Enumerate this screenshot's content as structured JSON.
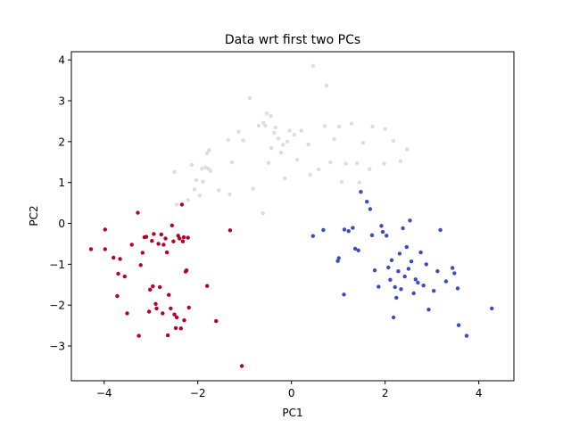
{
  "chart_data": {
    "type": "scatter",
    "title": "Data wrt first two PCs",
    "xlabel": "PC1",
    "ylabel": "PC2",
    "xlim": [
      -4.7,
      4.75
    ],
    "ylim": [
      -3.85,
      4.2
    ],
    "xticks": [
      -4,
      -2,
      0,
      2,
      4
    ],
    "yticks": [
      -3,
      -2,
      -1,
      0,
      1,
      2,
      3,
      4
    ],
    "grid": false,
    "legend": "none",
    "series": [
      {
        "color": "#b40426",
        "points": [
          [
            -4.28,
            -0.63
          ],
          [
            -3.98,
            -0.15
          ],
          [
            -3.98,
            -0.63
          ],
          [
            -3.8,
            -0.84
          ],
          [
            -3.72,
            -1.78
          ],
          [
            -3.7,
            -1.23
          ],
          [
            -3.66,
            -0.87
          ],
          [
            -3.56,
            -1.3
          ],
          [
            -3.51,
            -2.2
          ],
          [
            -3.41,
            -0.52
          ],
          [
            -3.28,
            0.26
          ],
          [
            -3.26,
            -2.75
          ],
          [
            -3.22,
            -1.02
          ],
          [
            -3.18,
            -0.72
          ],
          [
            -3.14,
            -0.34
          ],
          [
            -3.1,
            -0.33
          ],
          [
            -3.04,
            -2.16
          ],
          [
            -3.02,
            -1.62
          ],
          [
            -2.98,
            -0.43
          ],
          [
            -2.96,
            -1.54
          ],
          [
            -2.94,
            -0.26
          ],
          [
            -2.9,
            -1.97
          ],
          [
            -2.88,
            -2.08
          ],
          [
            -2.84,
            -0.5
          ],
          [
            -2.81,
            -1.56
          ],
          [
            -2.78,
            -0.27
          ],
          [
            -2.75,
            -2.2
          ],
          [
            -2.73,
            -0.52
          ],
          [
            -2.69,
            -0.37
          ],
          [
            -2.66,
            -0.71
          ],
          [
            -2.64,
            -2.74
          ],
          [
            -2.62,
            -1.75
          ],
          [
            -2.58,
            -2.08
          ],
          [
            -2.55,
            -0.05
          ],
          [
            -2.52,
            -0.44
          ],
          [
            -2.5,
            -2.23
          ],
          [
            -2.47,
            -2.56
          ],
          [
            -2.45,
            -2.3
          ],
          [
            -2.42,
            -0.3
          ],
          [
            -2.39,
            -0.37
          ],
          [
            -2.36,
            -2.57
          ],
          [
            -2.34,
            0.46
          ],
          [
            -2.32,
            -0.44
          ],
          [
            -2.3,
            -0.34
          ],
          [
            -2.29,
            -2.37
          ],
          [
            -2.26,
            -1.18
          ],
          [
            -2.24,
            -1.15
          ],
          [
            -2.21,
            -0.35
          ],
          [
            -2.19,
            -2.06
          ],
          [
            -1.8,
            -1.53
          ],
          [
            -1.61,
            -2.39
          ],
          [
            -1.31,
            -0.17
          ],
          [
            -1.06,
            -3.49
          ]
        ]
      },
      {
        "color": "#dddddd",
        "points": [
          [
            -2.45,
            0.46
          ],
          [
            -2.5,
            1.26
          ],
          [
            -2.21,
            0.57
          ],
          [
            -2.13,
            1.43
          ],
          [
            -2.07,
            0.83
          ],
          [
            -2.03,
            1.06
          ],
          [
            -1.96,
            0.68
          ],
          [
            -1.91,
            1.34
          ],
          [
            -1.89,
            1.02
          ],
          [
            -1.83,
            1.37
          ],
          [
            -1.8,
            1.72
          ],
          [
            -1.78,
            1.34
          ],
          [
            -1.76,
            1.79
          ],
          [
            -1.73,
            1.28
          ],
          [
            -1.55,
            0.81
          ],
          [
            -1.35,
            2.04
          ],
          [
            -1.32,
            0.71
          ],
          [
            -1.27,
            1.49
          ],
          [
            -1.13,
            2.24
          ],
          [
            -1.03,
            2.03
          ],
          [
            -0.89,
            3.07
          ],
          [
            -0.82,
            0.85
          ],
          [
            -0.7,
            2.39
          ],
          [
            -0.61,
            0.25
          ],
          [
            -0.6,
            2.46
          ],
          [
            -0.56,
            2.39
          ],
          [
            -0.53,
            2.69
          ],
          [
            -0.44,
            2.63
          ],
          [
            -0.43,
            1.84
          ],
          [
            -0.49,
            1.48
          ],
          [
            -0.37,
            2.21
          ],
          [
            -0.34,
            2.35
          ],
          [
            -0.28,
            2.08
          ],
          [
            -0.22,
            1.73
          ],
          [
            -0.18,
            1.92
          ],
          [
            -0.14,
            1.1
          ],
          [
            -0.09,
            2.0
          ],
          [
            -0.04,
            2.27
          ],
          [
            0.06,
            2.17
          ],
          [
            0.12,
            1.56
          ],
          [
            0.21,
            2.27
          ],
          [
            0.36,
            1.93
          ],
          [
            0.4,
            1.19
          ],
          [
            0.46,
            3.85
          ],
          [
            0.58,
            1.32
          ],
          [
            0.71,
            2.38
          ],
          [
            0.75,
            3.37
          ],
          [
            0.83,
            1.49
          ],
          [
            0.91,
            2.06
          ],
          [
            1.02,
            2.37
          ],
          [
            1.07,
            1.02
          ],
          [
            1.16,
            1.46
          ],
          [
            1.28,
            2.44
          ],
          [
            1.4,
            1.47
          ],
          [
            1.45,
            1.0
          ],
          [
            1.53,
            1.97
          ],
          [
            1.67,
            1.33
          ],
          [
            1.73,
            2.37
          ],
          [
            1.98,
            1.46
          ],
          [
            2.0,
            2.31
          ],
          [
            2.18,
            2.02
          ],
          [
            2.33,
            1.52
          ],
          [
            2.47,
            1.81
          ]
        ]
      },
      {
        "color": "#3b4cc0",
        "points": [
          [
            0.46,
            -0.31
          ],
          [
            0.68,
            -0.16
          ],
          [
            0.99,
            -0.92
          ],
          [
            1.01,
            -0.85
          ],
          [
            1.12,
            -1.74
          ],
          [
            1.13,
            -0.15
          ],
          [
            1.22,
            -0.19
          ],
          [
            1.31,
            -0.11
          ],
          [
            1.36,
            -0.62
          ],
          [
            1.43,
            -0.66
          ],
          [
            1.48,
            0.77
          ],
          [
            1.61,
            0.53
          ],
          [
            1.68,
            0.35
          ],
          [
            1.72,
            -0.29
          ],
          [
            1.78,
            -1.15
          ],
          [
            1.86,
            -1.55
          ],
          [
            1.92,
            -0.06
          ],
          [
            1.95,
            -0.21
          ],
          [
            2.03,
            -0.3
          ],
          [
            2.07,
            -1.08
          ],
          [
            2.11,
            -1.38
          ],
          [
            2.14,
            -0.9
          ],
          [
            2.18,
            -2.3
          ],
          [
            2.21,
            -1.56
          ],
          [
            2.24,
            -1.82
          ],
          [
            2.28,
            -1.17
          ],
          [
            2.31,
            -0.74
          ],
          [
            2.34,
            -1.61
          ],
          [
            2.38,
            -0.12
          ],
          [
            2.42,
            -1.3
          ],
          [
            2.46,
            -0.58
          ],
          [
            2.5,
            -1.11
          ],
          [
            2.53,
            0.07
          ],
          [
            2.56,
            -0.93
          ],
          [
            2.61,
            -1.71
          ],
          [
            2.65,
            -1.37
          ],
          [
            2.7,
            -1.45
          ],
          [
            2.76,
            -0.71
          ],
          [
            2.82,
            -1.52
          ],
          [
            2.88,
            -1.0
          ],
          [
            2.93,
            -2.11
          ],
          [
            3.04,
            -1.65
          ],
          [
            3.12,
            -1.17
          ],
          [
            3.18,
            -0.16
          ],
          [
            3.3,
            -1.42
          ],
          [
            3.44,
            -1.09
          ],
          [
            3.48,
            -1.22
          ],
          [
            3.55,
            -1.59
          ],
          [
            3.57,
            -2.49
          ],
          [
            3.74,
            -2.75
          ],
          [
            4.28,
            -2.08
          ]
        ]
      }
    ]
  }
}
